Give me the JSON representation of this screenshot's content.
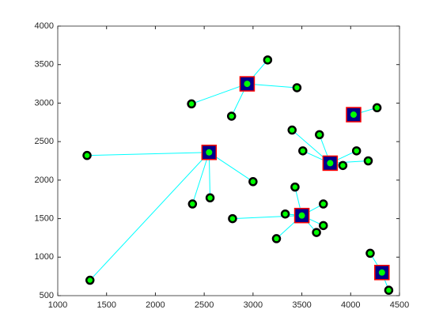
{
  "chart_data": {
    "type": "scatter",
    "xlim": [
      1000,
      4500
    ],
    "ylim": [
      500,
      4000
    ],
    "xticks": [
      1000,
      1500,
      2000,
      2500,
      3000,
      3500,
      4000,
      4500
    ],
    "yticks": [
      500,
      1000,
      1500,
      2000,
      2500,
      3000,
      3500,
      4000
    ],
    "point_color": "#00ff00",
    "point_edge_color": "#000000",
    "center_color": "#00008b",
    "center_edge_color": "#ff0000",
    "line_color": "#00ffff",
    "clusters": [
      {
        "center": [
          2940,
          3250
        ],
        "points": {
          "x": [
            3150,
            3450,
            2370,
            2780
          ],
          "y": [
            3560,
            3200,
            2990,
            2830
          ]
        }
      },
      {
        "center": [
          2550,
          2360
        ],
        "points": {
          "x": [
            1300,
            1330,
            2380,
            2560,
            3000
          ],
          "y": [
            2320,
            700,
            1690,
            1770,
            1980
          ]
        }
      },
      {
        "center": [
          4030,
          2850
        ],
        "points": {
          "x": [
            4270
          ],
          "y": [
            2940
          ]
        }
      },
      {
        "center": [
          3790,
          2220
        ],
        "points": {
          "x": [
            3400,
            3510,
            3680,
            3920,
            4060,
            4180
          ],
          "y": [
            2650,
            2380,
            2590,
            2190,
            2380,
            2250
          ]
        }
      },
      {
        "center": [
          3500,
          1540
        ],
        "points": {
          "x": [
            3430,
            3330,
            2790,
            3240,
            3650,
            3720,
            3720
          ],
          "y": [
            1910,
            1560,
            1500,
            1240,
            1320,
            1690,
            1410
          ]
        }
      },
      {
        "center": [
          4320,
          800
        ],
        "points": {
          "x": [
            4200,
            4390
          ],
          "y": [
            1050,
            570
          ]
        }
      }
    ]
  }
}
